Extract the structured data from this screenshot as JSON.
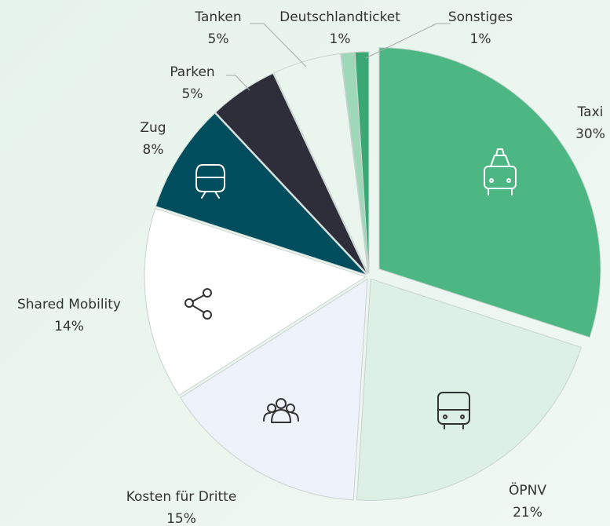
{
  "chart_data": {
    "type": "pie",
    "categories": [
      "Taxi",
      "ÖPNV",
      "Kosten für Dritte",
      "Shared Mobility",
      "Zug",
      "Parken",
      "Tanken",
      "Deutschlandticket",
      "Sonstiges"
    ],
    "values": [
      30,
      21,
      15,
      14,
      8,
      5,
      5,
      1,
      1
    ],
    "value_labels": [
      "30%",
      "21%",
      "15%",
      "14%",
      "8%",
      "5%",
      "5%",
      "1%",
      "1%"
    ],
    "colors": [
      "#4cb782",
      "#dcf0e5",
      "#eef2fa",
      "#ffffff",
      "#004d5e",
      "#2e2e3a",
      "#eaf5ee",
      "#9ed8b8",
      "#3aa872"
    ]
  }
}
